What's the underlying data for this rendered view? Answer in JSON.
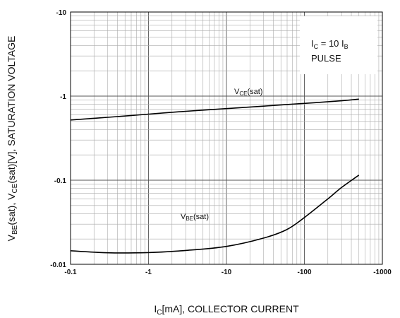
{
  "chart_data": {
    "type": "line",
    "x_scale": "log",
    "y_scale": "log",
    "xlim": [
      -0.1,
      -1000
    ],
    "ylim": [
      -0.01,
      -10
    ],
    "grid": true,
    "x_ticks": [
      "-0.1",
      "-1",
      "-10",
      "-100",
      "-1000"
    ],
    "y_ticks": [
      "-10",
      "-1",
      "-0.1",
      "-0.01"
    ],
    "xlabel": {
      "main": "I",
      "sub": "C",
      "rest": "[mA], COLLECTOR CURRENT"
    },
    "ylabel": {
      "p1": "V",
      "s1": "BE",
      "p2": "(sat), V",
      "s2": "CE",
      "p3": "(sat)[V], SATURATION VOLTAGE"
    },
    "legend": {
      "placement": "top-right",
      "line1_i": "I",
      "line1_sub": "C",
      "line1_mid": " = 10 I",
      "line1_sub2": "B",
      "line2": "PULSE"
    },
    "series": [
      {
        "name_main": "V",
        "name_sub": "CE",
        "name_tail": "(sat)",
        "x": [
          -0.1,
          -0.3,
          -1,
          -3,
          -10,
          -30,
          -100,
          -300,
          -500
        ],
        "y": [
          -0.52,
          -0.56,
          -0.61,
          -0.66,
          -0.71,
          -0.76,
          -0.82,
          -0.88,
          -0.92
        ]
      },
      {
        "name_main": "V",
        "name_sub": "BE",
        "name_tail": "(sat)",
        "x": [
          -0.1,
          -0.3,
          -1,
          -3,
          -10,
          -30,
          -60,
          -100,
          -200,
          -300,
          -500
        ],
        "y": [
          -0.0145,
          -0.0137,
          -0.0138,
          -0.0146,
          -0.0163,
          -0.0205,
          -0.026,
          -0.036,
          -0.06,
          -0.082,
          -0.115
        ]
      }
    ]
  }
}
